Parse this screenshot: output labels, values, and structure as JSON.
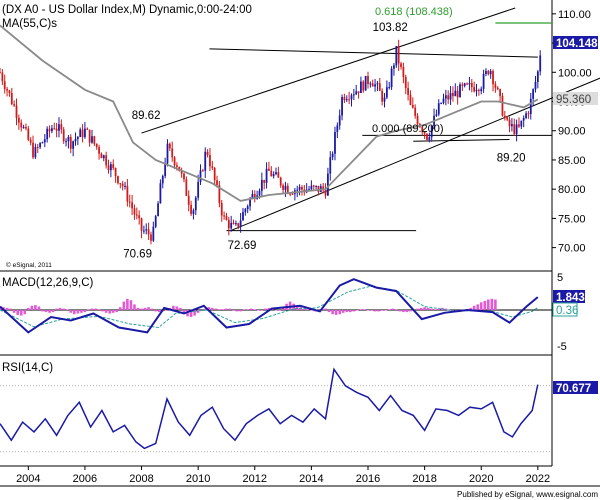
{
  "main_panel": {
    "title": "(DX A0 - US Dollar Index,M) Dynamic,0:00-24:00",
    "ma_label": "MA(55,C)s",
    "copyright": "© eSignal, 2011",
    "price_badge": "104.148",
    "ma_badge": "95.360",
    "fib_upper": "0.618 (108.438)",
    "fib_lower": "0.000 (89.200)",
    "y_ticks": [
      "110.00",
      "105.00",
      "100.00",
      "95.00",
      "90.00",
      "85.00",
      "80.00",
      "75.00",
      "70.00"
    ],
    "annotations": [
      "103.82",
      "89.62",
      "72.69",
      "70.69",
      "89.20"
    ]
  },
  "macd_panel": {
    "label": "MACD(12,26,9,C)",
    "value_badge": "1.843",
    "signal_badge": "0.36",
    "y_ticks": [
      "5",
      "-5"
    ]
  },
  "rsi_panel": {
    "label": "RSI(14,C)",
    "value_badge": "70.677"
  },
  "x_axis": {
    "ticks": [
      "2004",
      "2006",
      "2008",
      "2010",
      "2012",
      "2014",
      "2016",
      "2018",
      "2020",
      "2022"
    ]
  },
  "footer": "Published by eSignal, www.esignal.com",
  "colors": {
    "up_bar": "#1a1aa6",
    "down_bar": "#d11b1b",
    "ma": "#8a8a8a",
    "macd": "#1a1aa6",
    "macd_signal": "#2aa39a",
    "macd_hist": "#e45ad6",
    "rsi": "#1a1aa6",
    "fib_line": "#2e9d2e",
    "badge_bg": "#1a1aa6"
  },
  "chart_data": [
    {
      "type": "candlestick",
      "title": "(DX A0 - US Dollar Index,M) Dynamic,0:00-24:00",
      "x_range": [
        2003,
        2022.5
      ],
      "ylim": [
        66,
        111
      ],
      "price_path": [
        [
          2003.0,
          100
        ],
        [
          2003.6,
          93
        ],
        [
          2004.2,
          86
        ],
        [
          2004.9,
          91
        ],
        [
          2005.5,
          88
        ],
        [
          2006.0,
          90
        ],
        [
          2006.6,
          86
        ],
        [
          2007.3,
          81
        ],
        [
          2008.0,
          73
        ],
        [
          2008.4,
          72
        ],
        [
          2008.9,
          87
        ],
        [
          2009.3,
          84
        ],
        [
          2009.8,
          76
        ],
        [
          2010.3,
          87
        ],
        [
          2010.9,
          75
        ],
        [
          2011.3,
          73
        ],
        [
          2011.8,
          78
        ],
        [
          2012.5,
          83
        ],
        [
          2013.2,
          80
        ],
        [
          2014.0,
          80
        ],
        [
          2014.5,
          80
        ],
        [
          2015.1,
          96
        ],
        [
          2015.6,
          97
        ],
        [
          2016.1,
          99
        ],
        [
          2016.6,
          95
        ],
        [
          2017.0,
          103.5
        ],
        [
          2017.5,
          94
        ],
        [
          2018.1,
          89
        ],
        [
          2018.6,
          95
        ],
        [
          2019.3,
          97
        ],
        [
          2020.0,
          98
        ],
        [
          2020.3,
          101
        ],
        [
          2020.9,
          91
        ],
        [
          2021.3,
          90
        ],
        [
          2021.7,
          94
        ],
        [
          2022.0,
          100
        ],
        [
          2022.1,
          104
        ]
      ],
      "ma55_path": [
        [
          2003.0,
          108
        ],
        [
          2004.5,
          102
        ],
        [
          2006.0,
          97
        ],
        [
          2007.0,
          95
        ],
        [
          2007.7,
          88
        ],
        [
          2008.5,
          85
        ],
        [
          2009.5,
          83
        ],
        [
          2010.5,
          81
        ],
        [
          2011.5,
          78
        ],
        [
          2012.5,
          79
        ],
        [
          2013.5,
          79.5
        ],
        [
          2014.5,
          80
        ],
        [
          2015.5,
          85
        ],
        [
          2016.3,
          89
        ],
        [
          2017.0,
          90
        ],
        [
          2018.0,
          91
        ],
        [
          2019.0,
          93
        ],
        [
          2020.0,
          95
        ],
        [
          2020.6,
          95
        ],
        [
          2021.5,
          94
        ],
        [
          2022.0,
          95.36
        ]
      ],
      "annotations": [
        {
          "label": "103.82",
          "x": 2016.8,
          "y": 103.82
        },
        {
          "label": "89.62",
          "x": 2008.5,
          "y": 89.62
        },
        {
          "label": "72.69",
          "x": 2010.9,
          "y": 72.69
        },
        {
          "label": "70.69",
          "x": 2008.2,
          "y": 70.69
        },
        {
          "label": "89.20",
          "x": 2020.9,
          "y": 89.2
        }
      ],
      "trendlines": [
        {
          "from": [
            2008.0,
            89.6
          ],
          "to": [
            2021.2,
            111
          ]
        },
        {
          "from": [
            2011.2,
            73.0
          ],
          "to": [
            2024.2,
            99
          ]
        },
        {
          "from": [
            2011.0,
            72.9
          ],
          "to": [
            2017.7,
            72.9
          ]
        },
        {
          "from": [
            2010.4,
            104.0
          ],
          "to": [
            2022.0,
            102.6
          ]
        },
        {
          "from": [
            2017.6,
            88.2
          ],
          "to": [
            2021.0,
            88.5
          ]
        }
      ],
      "fib_levels": [
        {
          "label": "0.618 (108.438)",
          "y": 108.438
        },
        {
          "label": "0.000 (89.200)",
          "y": 89.2
        }
      ]
    },
    {
      "type": "line",
      "title": "MACD(12,26,9,C)",
      "ylim": [
        -6,
        6
      ],
      "macd_path": [
        [
          2003.0,
          0.5
        ],
        [
          2004.0,
          -3.2
        ],
        [
          2004.8,
          -1.0
        ],
        [
          2005.5,
          -1.5
        ],
        [
          2006.3,
          -0.5
        ],
        [
          2007.2,
          -2.5
        ],
        [
          2008.2,
          -3.2
        ],
        [
          2008.8,
          0.3
        ],
        [
          2009.5,
          -0.5
        ],
        [
          2010.2,
          0.6
        ],
        [
          2011.0,
          -2.5
        ],
        [
          2011.8,
          -2.0
        ],
        [
          2012.6,
          0.2
        ],
        [
          2013.6,
          0.6
        ],
        [
          2014.3,
          -0.2
        ],
        [
          2015.0,
          3.5
        ],
        [
          2015.5,
          4.4
        ],
        [
          2016.3,
          3.2
        ],
        [
          2017.0,
          2.7
        ],
        [
          2017.9,
          -1.3
        ],
        [
          2018.7,
          -0.4
        ],
        [
          2019.5,
          0.0
        ],
        [
          2020.4,
          -0.3
        ],
        [
          2021.0,
          -1.8
        ],
        [
          2021.6,
          0.5
        ],
        [
          2022.0,
          1.843
        ]
      ],
      "signal_path": [
        [
          2003.0,
          0.0
        ],
        [
          2004.2,
          -2.4
        ],
        [
          2005.2,
          -1.3
        ],
        [
          2006.5,
          -0.9
        ],
        [
          2007.6,
          -2.0
        ],
        [
          2008.6,
          -2.5
        ],
        [
          2009.2,
          -0.5
        ],
        [
          2010.3,
          0.0
        ],
        [
          2011.3,
          -1.8
        ],
        [
          2012.3,
          -1.2
        ],
        [
          2013.4,
          0.2
        ],
        [
          2014.2,
          0.3
        ],
        [
          2015.3,
          2.6
        ],
        [
          2016.1,
          3.4
        ],
        [
          2017.0,
          2.8
        ],
        [
          2018.0,
          0.5
        ],
        [
          2019.0,
          -0.1
        ],
        [
          2020.3,
          -0.1
        ],
        [
          2021.1,
          -1.0
        ],
        [
          2021.8,
          -0.2
        ],
        [
          2022.0,
          0.36
        ]
      ],
      "histogram": {
        "start": 2003.0,
        "step": 0.125,
        "values": [
          0.5,
          0.4,
          0.3,
          0.2,
          -0.4,
          -0.7,
          -0.8,
          -0.6,
          0.3,
          0.6,
          0.7,
          0.5,
          -0.2,
          -0.3,
          -0.4,
          -0.3,
          0.2,
          0.3,
          0.2,
          0.1,
          -0.4,
          -0.6,
          -0.5,
          -0.4,
          -0.3,
          0.1,
          0.2,
          0.2,
          0.1,
          -0.2,
          -0.4,
          -0.5,
          -0.4,
          -0.3,
          0.4,
          1.2,
          1.6,
          1.4,
          0.8,
          0.3,
          0.2,
          0.3,
          0.4,
          0.2,
          -0.2,
          -0.3,
          -0.2,
          -0.1,
          0.3,
          0.6,
          0.5,
          0.3,
          -0.5,
          -0.9,
          -1.0,
          -0.8,
          -0.4,
          -0.1,
          0.2,
          0.4,
          0.3,
          0.2,
          0.1,
          0.1,
          0.2,
          0.2,
          -0.1,
          -0.2,
          -0.2,
          0.1,
          0.1,
          0.2,
          0.1,
          0.0,
          -0.1,
          0.2,
          0.3,
          0.1,
          0.0,
          -0.1,
          0.4,
          0.9,
          1.2,
          0.9,
          0.6,
          0.4,
          0.2,
          0.1,
          0.0,
          -0.2,
          -0.1,
          0.1,
          0.2,
          -0.3,
          -0.6,
          -0.7,
          -0.6,
          -0.4,
          -0.3,
          -0.3,
          -0.2,
          0.0,
          0.1,
          0.1,
          0.0,
          -0.1,
          -0.2,
          -0.2,
          -0.1,
          0.0,
          0.1,
          0.2,
          0.1,
          -0.2,
          -0.3,
          -0.3,
          -0.2,
          0.0,
          0.2,
          0.3,
          0.4,
          0.3,
          0.2,
          0.1,
          0.2,
          0.3,
          0.2,
          -0.1,
          -0.2,
          -0.3,
          -0.3,
          -0.2,
          0.1,
          0.3,
          0.6,
          0.8,
          1.1,
          1.3,
          1.5,
          1.6,
          1.5
        ]
      }
    },
    {
      "type": "line",
      "title": "RSI(14,C)",
      "ylim": [
        25,
        85
      ],
      "reference_levels": [
        70,
        30
      ],
      "rsi_path": [
        [
          2003.0,
          47
        ],
        [
          2003.4,
          37
        ],
        [
          2003.8,
          48
        ],
        [
          2004.2,
          42
        ],
        [
          2004.6,
          50
        ],
        [
          2005.0,
          40
        ],
        [
          2005.4,
          52
        ],
        [
          2005.8,
          60
        ],
        [
          2006.2,
          45
        ],
        [
          2006.6,
          55
        ],
        [
          2007.0,
          42
        ],
        [
          2007.4,
          46
        ],
        [
          2007.8,
          36
        ],
        [
          2008.1,
          32
        ],
        [
          2008.5,
          35
        ],
        [
          2008.9,
          62
        ],
        [
          2009.3,
          48
        ],
        [
          2009.7,
          40
        ],
        [
          2010.1,
          52
        ],
        [
          2010.5,
          57
        ],
        [
          2010.9,
          44
        ],
        [
          2011.3,
          37
        ],
        [
          2011.7,
          47
        ],
        [
          2012.1,
          52
        ],
        [
          2012.5,
          56
        ],
        [
          2012.9,
          47
        ],
        [
          2013.3,
          52
        ],
        [
          2013.7,
          48
        ],
        [
          2014.1,
          56
        ],
        [
          2014.5,
          50
        ],
        [
          2014.8,
          80
        ],
        [
          2015.2,
          70
        ],
        [
          2015.6,
          66
        ],
        [
          2016.0,
          63
        ],
        [
          2016.4,
          55
        ],
        [
          2016.8,
          64
        ],
        [
          2017.2,
          55
        ],
        [
          2017.6,
          52
        ],
        [
          2018.0,
          43
        ],
        [
          2018.4,
          56
        ],
        [
          2018.8,
          55
        ],
        [
          2019.2,
          52
        ],
        [
          2019.6,
          57
        ],
        [
          2020.0,
          56
        ],
        [
          2020.4,
          60
        ],
        [
          2020.8,
          42
        ],
        [
          2021.1,
          39
        ],
        [
          2021.4,
          47
        ],
        [
          2021.8,
          55
        ],
        [
          2022.0,
          70.677
        ]
      ]
    }
  ]
}
